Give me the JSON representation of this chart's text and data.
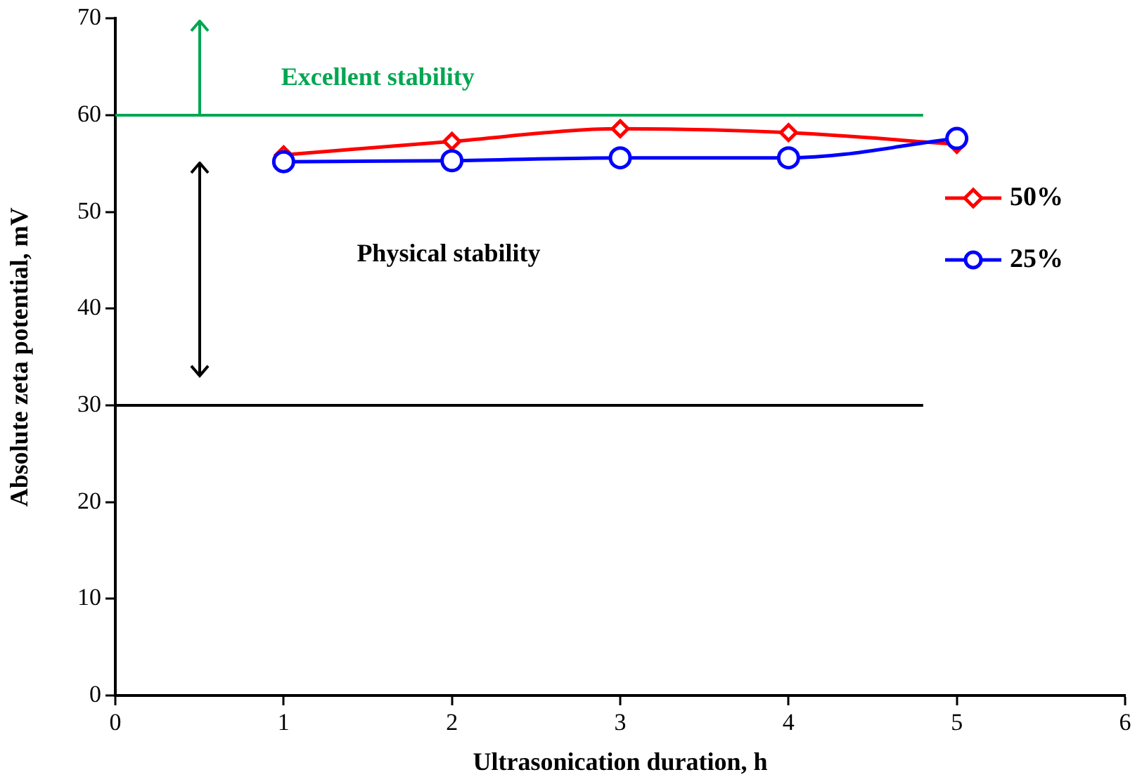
{
  "chart_data": {
    "type": "line",
    "xlabel": "Ultrasonication duration, h",
    "ylabel": "Absolute zeta potential, mV",
    "x": [
      1,
      2,
      3,
      4,
      5
    ],
    "series": [
      {
        "name": "50%",
        "color": "#ff0000",
        "marker": "diamond",
        "values": [
          55.9,
          57.3,
          58.6,
          58.2,
          57.0
        ]
      },
      {
        "name": "25%",
        "color": "#0000ff",
        "marker": "circle",
        "values": [
          55.2,
          55.3,
          55.6,
          55.6,
          57.6
        ]
      }
    ],
    "xlim": [
      0,
      6
    ],
    "xticks": [
      0,
      1,
      2,
      3,
      4,
      5,
      6
    ],
    "ylim": [
      0,
      70
    ],
    "yticks": [
      0,
      10,
      20,
      30,
      40,
      50,
      60,
      70
    ],
    "ref_lines": [
      {
        "axis": "y",
        "value": 60,
        "color": "#00a651"
      },
      {
        "axis": "y",
        "value": 30,
        "color": "#000000"
      }
    ],
    "annotations": [
      "Excellent stability",
      "Physical stability"
    ],
    "grid": false,
    "legend": "right",
    "line_style": "solid"
  }
}
